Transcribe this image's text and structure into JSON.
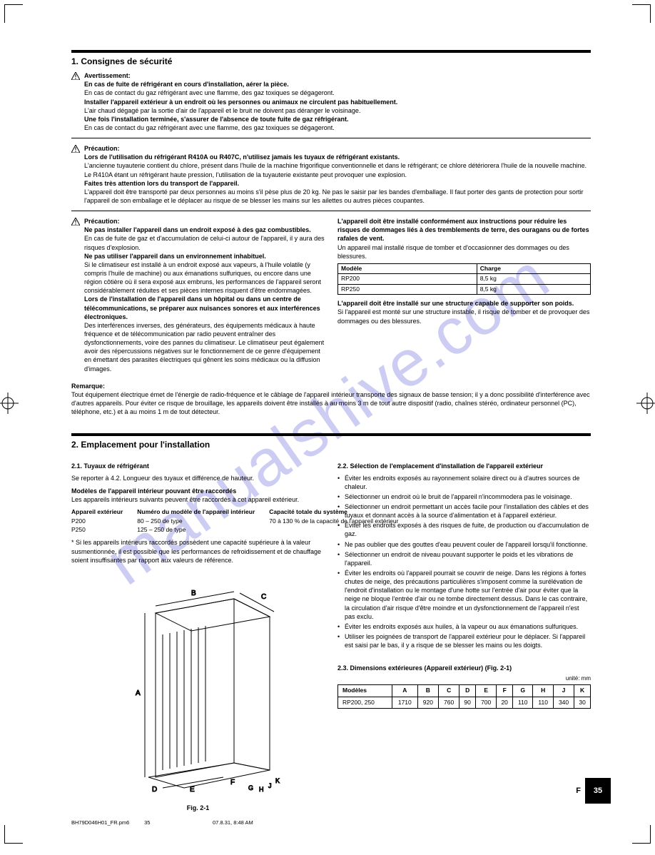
{
  "watermark": "manualshive.com",
  "corner": {
    "bl_angle": "-45",
    "br_angle": "45"
  },
  "section1": {
    "title": "1. Consignes de sécurité",
    "block1": {
      "heading": "Avertissement:",
      "lines": [
        "En cas de fuite de réfrigérant en cours d'installation, aérer la pièce.",
        "En cas de contact du gaz réfrigérant avec une flamme, des gaz toxiques se dégageront.",
        "Installer l'appareil extérieur à un endroit où les personnes ou animaux ne circulent pas habituellement.",
        "L'air chaud dégagé par la sortie d'air de l'appareil et le bruit ne doivent pas déranger le voisinage.",
        "Une fois l'installation terminée, s'assurer de l'absence de toute fuite de gaz réfrigérant.",
        "En cas de contact du gaz réfrigérant avec une flamme, des gaz toxiques se dégageront."
      ]
    },
    "block2": {
      "heading": "Précaution:",
      "lines": [
        "Lors de l'utilisation du réfrigérant R410A ou R407C, n'utilisez jamais les tuyaux de réfrigérant existants.",
        "L'ancienne tuyauterie contient du chlore, présent dans l'huile de la machine frigorifique conventionnelle et dans le réfrigérant; ce chlore détériorera l'huile de la nouvelle machine. Le R410A étant un réfrigérant haute pression, l'utilisation de la tuyauterie existante peut provoquer une explosion.",
        "Faites très attention lors du transport de l'appareil.",
        "L'appareil doit être transporté par deux personnes au moins s'il pèse plus de 20 kg. Ne pas le saisir par les bandes d'emballage. Il faut porter des gants de protection pour sortir l'appareil de son emballage et le déplacer au risque de se blesser les mains sur les ailettes ou autres pièces coupantes."
      ]
    },
    "block3": {
      "heading": "Précaution:",
      "left": [
        "Ne pas installer l'appareil dans un endroit exposé à des gaz combustibles.",
        "En cas de fuite de gaz et d'accumulation de celui-ci autour de l'appareil, il y aura des risques d'explosion.",
        "Ne pas utiliser l'appareil dans un environnement inhabituel.",
        "Si le climatiseur est installé à un endroit exposé aux vapeurs, à l'huile volatile (y compris l'huile de machine) ou aux émanations sulfuriques, ou encore dans une région côtière où il sera exposé aux embruns, les performances de l'appareil seront considérablement réduites et ses pièces internes risquent d'être endommagées.",
        "Lors de l'installation de l'appareil dans un hôpital ou dans un centre de télécommunications, se préparer aux nuisances sonores et aux interférences électroniques.",
        "Des interférences inverses, des générateurs, des équipements médicaux à haute fréquence et de télécommunication par radio peuvent entraîner des dysfonctionnements, voire des pannes du climatiseur. Le climatiseur peut également avoir des répercussions négatives sur le fonctionnement de ce genre d'équipement en émettant des parasites électriques qui gênent les soins médicaux ou la diffusion d'images."
      ],
      "right_bullets_before": [
        "L'appareil doit être installé conformément aux instructions pour réduire les risques de dommages liés à des tremblements de terre, des ouragans ou de fortes rafales de vent.",
        "Un appareil mal installé risque de tomber et d'occasionner des dommages ou des blessures."
      ],
      "charge_table": {
        "header": [
          "Modèle",
          "Charge"
        ],
        "rows": [
          [
            "RP200",
            "8,5 kg"
          ],
          [
            "RP250",
            "8,5 kg"
          ]
        ]
      },
      "right_bullets_after": [
        "L'appareil doit être installé sur une structure capable de supporter son poids.",
        "Si l'appareil est monté sur une structure instable, il risque de tomber et de provoquer des dommages ou des blessures."
      ]
    },
    "note_lines": [
      "Remarque:",
      "Tout équipement électrique émet de l'énergie de radio-fréquence et le câblage de l'appareil intérieur transporte des signaux de basse tension; il y a donc possibilité d'interférence avec d'autres appareils. Pour éviter ce risque de brouillage, les appareils doivent être installés à au moins 3 m de tout autre dispositif (radio, chaînes stéréo, ordinateur personnel (PC), téléphone, etc.) et à au moins 1 m de tout détecteur."
    ]
  },
  "section2": {
    "title": "2. Emplacement pour l'installation",
    "sub21": {
      "title": "2.1. Tuyaux de réfrigérant",
      "ref": "Se reporter à 4.2. Longueur des tuyaux et différence de hauteur.",
      "model_title": "Modèles de l'appareil intérieur pouvant être raccordés",
      "intro": "Les appareils intérieurs suivants peuvent être raccordés à cet appareil extérieur.",
      "tables": [
        {
          "head": "Appareil extérieur",
          "rows": [
            "P200",
            "P250"
          ]
        },
        {
          "head": "Numéro du modèle de l'appareil intérieur",
          "rows": [
            "80 – 250 de type",
            "125 – 250 de type"
          ]
        },
        {
          "head": "Capacité totale du système",
          "rows": [
            "70 à 130 % de la capacité de l'appareil extérieur"
          ]
        }
      ],
      "note": "* Si les appareils intérieurs raccordés possèdent une capacité supérieure à la valeur susmentionnée, il est possible que les performances de refroidissement et de chauffage soient insuffisantes par rapport aux valeurs de référence."
    },
    "sub22": {
      "title": "2.2. Sélection de l'emplacement d'installation de l'appareil extérieur",
      "bullets": [
        "Éviter les endroits exposés au rayonnement solaire direct ou à d'autres sources de chaleur.",
        "Sélectionner un endroit où le bruit de l'appareil n'incommodera pas le voisinage.",
        "Sélectionner un endroit permettant un accès facile pour l'installation des câbles et des tuyaux et donnant accès à la source d'alimentation et à l'appareil extérieur.",
        "Éviter les endroits exposés à des risques de fuite, de production ou d'accumulation de gaz.",
        "Ne pas oublier que des gouttes d'eau peuvent couler de l'appareil lorsqu'il fonctionne.",
        "Sélectionner un endroit de niveau pouvant supporter le poids et les vibrations de l'appareil.",
        "Éviter les endroits où l'appareil pourrait se couvrir de neige. Dans les régions à fortes chutes de neige, des précautions particulières s'imposent comme la surélévation de l'endroit d'installation ou le montage d'une hotte sur l'entrée d'air pour éviter que la neige ne bloque l'entrée d'air ou ne tombe directement dessus. Dans le cas contraire, la circulation d'air risque d'être moindre et un dysfonctionnement de l'appareil n'est pas exclu.",
        "Éviter les endroits exposés aux huiles, à la vapeur ou aux émanations sulfuriques.",
        "Utiliser les poignées de transport de l'appareil extérieur pour le déplacer. Si l'appareil est saisi par le bas, il y a risque de se blesser les mains ou les doigts."
      ]
    },
    "sub23": {
      "title": "2.3. Dimensions extérieures (Appareil extérieur) (Fig. 2-1)",
      "table": {
        "header": [
          "Modèles",
          "A",
          "B",
          "C",
          "D",
          "E",
          "F",
          "G",
          "H",
          "J",
          "K"
        ],
        "rows": [
          [
            "RP200, 250",
            "1710",
            "920",
            "760",
            "90",
            "700",
            "20",
            "110",
            "110",
            "340",
            "30"
          ]
        ]
      },
      "fig_label": "Fig. 2-1"
    }
  },
  "footer": {
    "lang": "F",
    "page": "35",
    "filename": "BH79D046H01_FR.pm6",
    "pgnum": "35",
    "date": "07.8.31, 8:48 AM"
  }
}
